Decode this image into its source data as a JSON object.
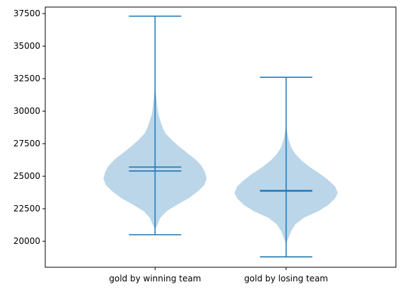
{
  "chart_data": {
    "type": "violin",
    "title": "",
    "xlabel": "",
    "ylabel": "",
    "ylim": [
      18000,
      38000
    ],
    "yticks": [
      20000,
      22500,
      25000,
      27500,
      30000,
      32500,
      35000,
      37500
    ],
    "grid": false,
    "colors": {
      "body": "#1f77b4",
      "body_opacity": 0.3,
      "lines": "#1f77b4"
    },
    "categories": [
      "gold by winning team",
      "gold by losing team"
    ],
    "violins": [
      {
        "label": "gold by winning team",
        "min": 20500,
        "max": 37300,
        "mean": 25700,
        "median": 25400,
        "density": [
          [
            20900,
            0.0
          ],
          [
            21300,
            0.05
          ],
          [
            21800,
            0.1
          ],
          [
            22300,
            0.22
          ],
          [
            22800,
            0.42
          ],
          [
            23300,
            0.65
          ],
          [
            23800,
            0.82
          ],
          [
            24300,
            0.95
          ],
          [
            24800,
            1.0
          ],
          [
            25300,
            0.97
          ],
          [
            25800,
            0.9
          ],
          [
            26300,
            0.78
          ],
          [
            26800,
            0.62
          ],
          [
            27300,
            0.46
          ],
          [
            27800,
            0.32
          ],
          [
            28300,
            0.2
          ],
          [
            28800,
            0.14
          ],
          [
            29300,
            0.1
          ],
          [
            29800,
            0.06
          ],
          [
            30500,
            0.04
          ],
          [
            31200,
            0.02
          ],
          [
            32000,
            0.0
          ]
        ]
      },
      {
        "label": "gold by losing team",
        "min": 18800,
        "max": 32600,
        "mean": 23900,
        "median": 23850,
        "density": [
          [
            19800,
            0.0
          ],
          [
            20300,
            0.05
          ],
          [
            20800,
            0.1
          ],
          [
            21300,
            0.18
          ],
          [
            21800,
            0.34
          ],
          [
            22300,
            0.62
          ],
          [
            22800,
            0.82
          ],
          [
            23300,
            0.95
          ],
          [
            23700,
            1.0
          ],
          [
            24200,
            0.95
          ],
          [
            24700,
            0.82
          ],
          [
            25200,
            0.65
          ],
          [
            25700,
            0.46
          ],
          [
            26200,
            0.3
          ],
          [
            26700,
            0.18
          ],
          [
            27200,
            0.1
          ],
          [
            27800,
            0.05
          ],
          [
            28400,
            0.02
          ],
          [
            29000,
            0.0
          ]
        ]
      }
    ]
  }
}
